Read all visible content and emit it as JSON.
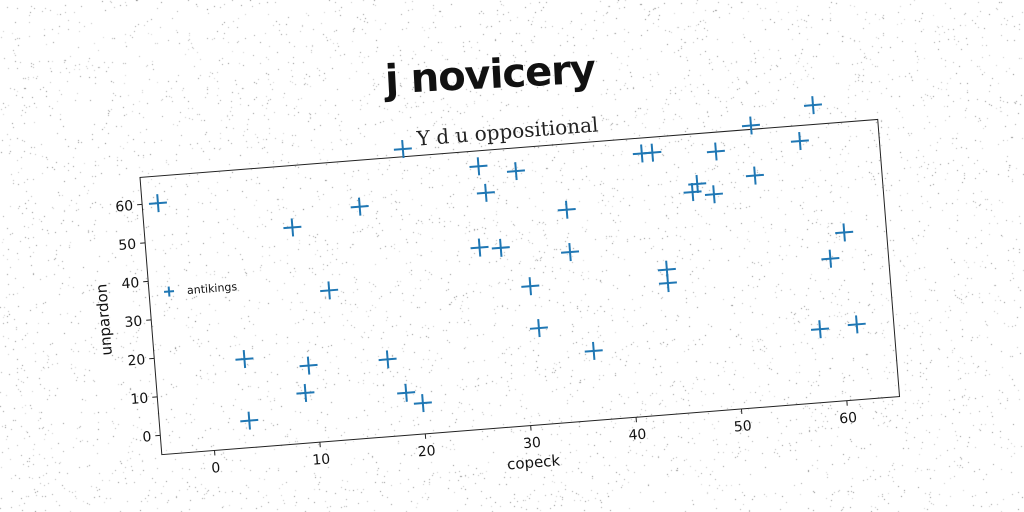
{
  "page": {
    "title": "j novicery"
  },
  "chart_data": {
    "type": "scatter",
    "title": "Y d u oppositional",
    "xlabel": "copeck",
    "ylabel": "unpardon",
    "xlim": [
      -5,
      65
    ],
    "ylim": [
      -5,
      67
    ],
    "xticks": [
      0,
      10,
      20,
      30,
      40,
      50,
      60
    ],
    "yticks": [
      0,
      10,
      20,
      30,
      40,
      50,
      60
    ],
    "grid": false,
    "legend": "left",
    "marker": "plus",
    "colors": {
      "series": "#1f77b4",
      "axes": "#222222"
    },
    "series": [
      {
        "name": "antikings",
        "points": [
          [
            -3.5,
            60
          ],
          [
            9,
            51
          ],
          [
            15.5,
            55
          ],
          [
            12,
            34
          ],
          [
            3.5,
            18
          ],
          [
            3.5,
            2
          ],
          [
            9,
            8
          ],
          [
            9.5,
            15
          ],
          [
            17,
            15
          ],
          [
            18.5,
            6
          ],
          [
            20,
            3
          ],
          [
            20,
            69
          ],
          [
            27,
            63
          ],
          [
            27.5,
            56
          ],
          [
            26.5,
            42
          ],
          [
            28.5,
            41.5
          ],
          [
            30.5,
            61
          ],
          [
            31,
            31
          ],
          [
            31.5,
            20
          ],
          [
            35,
            50
          ],
          [
            35,
            39
          ],
          [
            36.5,
            13
          ],
          [
            42.5,
            63
          ],
          [
            43.5,
            63
          ],
          [
            44,
            32.5
          ],
          [
            44,
            29
          ],
          [
            47,
            52
          ],
          [
            47.5,
            54
          ],
          [
            49,
            51
          ],
          [
            49.5,
            62
          ],
          [
            53,
            55
          ],
          [
            53,
            68
          ],
          [
            57.5,
            63
          ],
          [
            59,
            72
          ],
          [
            58,
            14
          ],
          [
            59.5,
            32
          ],
          [
            61,
            38.5
          ],
          [
            61.5,
            14.5
          ]
        ]
      }
    ]
  }
}
